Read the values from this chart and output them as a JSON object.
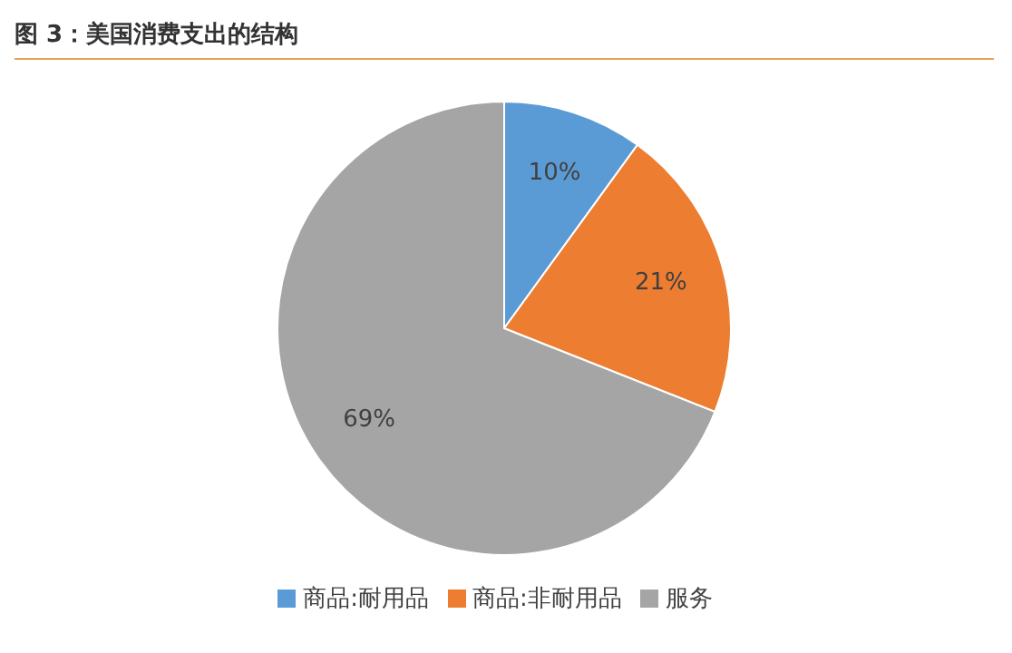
{
  "chart_data": {
    "type": "pie",
    "title": "图 3：美国消费支出的结构",
    "categories": [
      "商品:耐用品",
      "商品:非耐用品",
      "服务"
    ],
    "values": [
      10,
      21,
      69
    ],
    "value_labels": [
      "10%",
      "21%",
      "69%"
    ],
    "colors": [
      "#5b9bd5",
      "#ed7d31",
      "#a5a5a5"
    ],
    "legend": "bottom"
  }
}
